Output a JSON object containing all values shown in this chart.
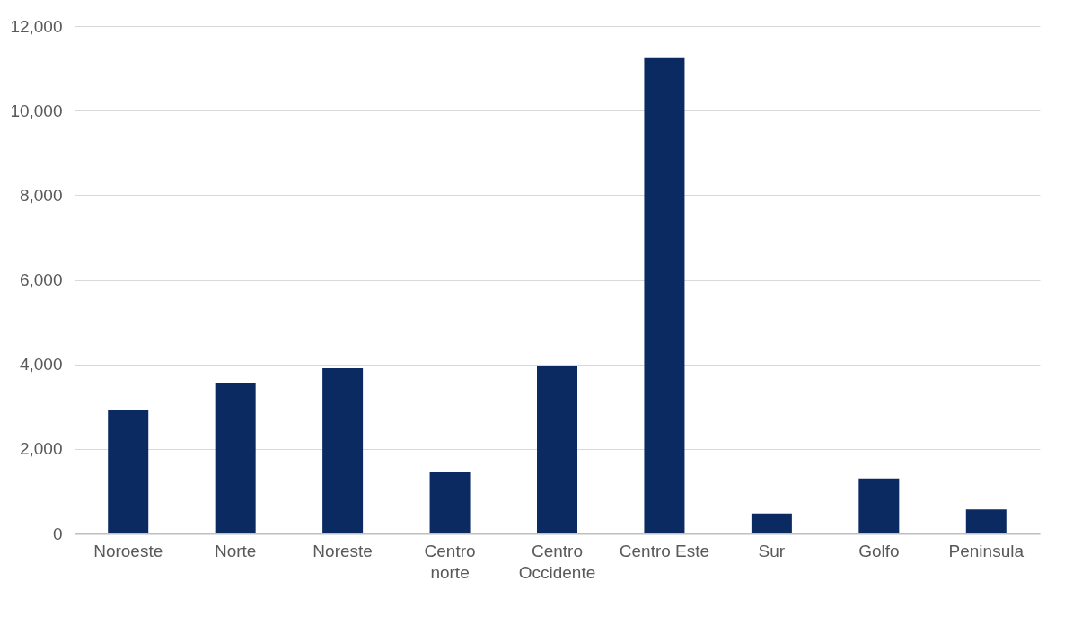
{
  "chart_data": {
    "type": "bar",
    "categories": [
      "Noroeste",
      "Norte",
      "Noreste",
      "Centro norte",
      "Centro Occidente",
      "Centro Este",
      "Sur",
      "Golfo",
      "Peninsula"
    ],
    "values": [
      2910,
      3550,
      3910,
      1450,
      3950,
      11240,
      470,
      1300,
      570
    ],
    "color": "#0c2a62",
    "ylim": [
      0,
      12000
    ],
    "yticks": [
      {
        "value": 0,
        "label": "0"
      },
      {
        "value": 2000,
        "label": "2,000"
      },
      {
        "value": 4000,
        "label": "4,000"
      },
      {
        "value": 6000,
        "label": "6,000"
      },
      {
        "value": 8000,
        "label": "8,000"
      },
      {
        "value": 10000,
        "label": "10,000"
      },
      {
        "value": 12000,
        "label": "12,000"
      }
    ],
    "grid": "y"
  }
}
